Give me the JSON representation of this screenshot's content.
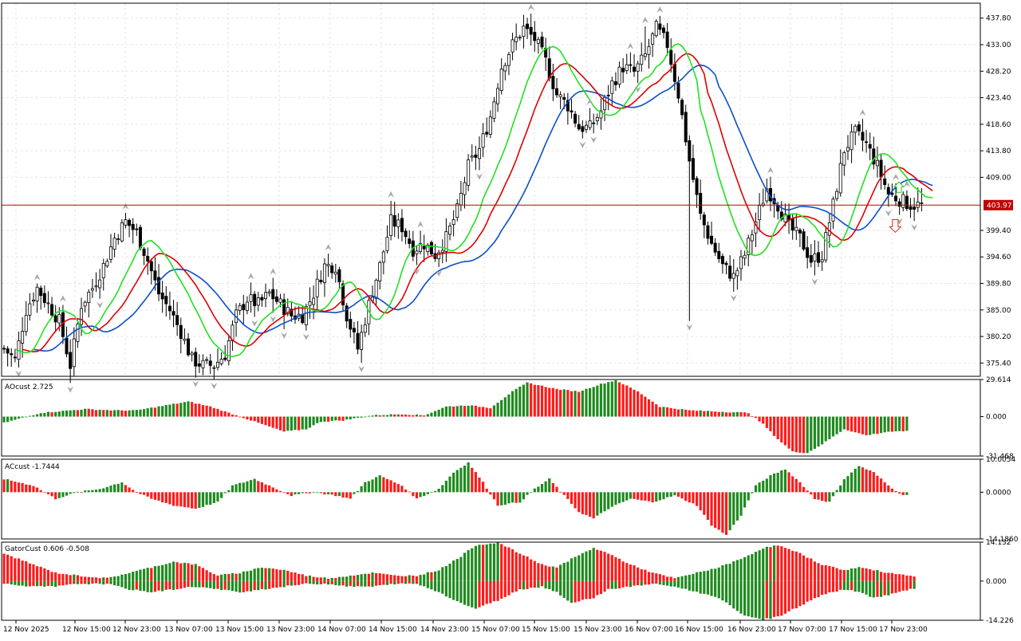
{
  "colors": {
    "background": "#ffffff",
    "grid": "#e6e6e6",
    "frame": "#000000",
    "bull": "#ffffff",
    "bear": "#000000",
    "jaw": "#0a4fc8",
    "teeth": "#e00000",
    "lips": "#22e022",
    "up": "#1f8a1f",
    "down": "#ff1a1a",
    "price_line": "#c00000",
    "price_tag": "#c00000",
    "fractal": "#a8a8a8"
  },
  "price_panel": {
    "ticks": [
      "437.80",
      "433.00",
      "428.20",
      "423.40",
      "418.60",
      "413.80",
      "409.00",
      "399.40",
      "394.60",
      "389.80",
      "385.00",
      "380.20",
      "375.40"
    ],
    "current_price": "403.97"
  },
  "ao_panel": {
    "label": "AOcust 2.725",
    "ticks": [
      "29.614",
      "0.000",
      "-31.468"
    ]
  },
  "ac_panel": {
    "label": "ACcust -1.7444",
    "ticks": [
      "10.0054",
      "0.0000",
      "-14.1860"
    ]
  },
  "gator_panel": {
    "label": "GatorCust 0.606 -0.508",
    "ticks": [
      "14.132",
      "0.000",
      "-14.226"
    ]
  },
  "time_axis": {
    "labels": [
      "12 Nov 2025",
      "12 Nov 15:00",
      "12 Nov 23:00",
      "13 Nov 07:00",
      "13 Nov 15:00",
      "13 Nov 23:00",
      "14 Nov 07:00",
      "14 Nov 15:00",
      "14 Nov 23:00",
      "15 Nov 07:00",
      "15 Nov 15:00",
      "15 Nov 23:00",
      "16 Nov 07:00",
      "16 Nov 15:00",
      "16 Nov 23:00",
      "17 Nov 07:00",
      "17 Nov 15:00",
      "17 Nov 23:00"
    ]
  },
  "chart_data": [
    {
      "type": "candlestick",
      "title": "",
      "timeframe_hours": 1,
      "price_ylim": [
        373.0,
        440.5
      ],
      "x_labels": [
        "12 Nov 2025",
        "12 Nov 15:00",
        "12 Nov 23:00",
        "13 Nov 07:00",
        "13 Nov 15:00",
        "13 Nov 23:00",
        "14 Nov 07:00",
        "14 Nov 15:00",
        "14 Nov 23:00",
        "15 Nov 07:00",
        "15 Nov 15:00",
        "15 Nov 23:00",
        "16 Nov 07:00",
        "16 Nov 15:00",
        "16 Nov 23:00",
        "17 Nov 07:00",
        "17 Nov 15:00",
        "17 Nov 23:00"
      ],
      "close_path": [
        [
          0,
          378
        ],
        [
          3,
          376
        ],
        [
          6,
          385
        ],
        [
          9,
          389
        ],
        [
          12,
          386
        ],
        [
          15,
          383
        ],
        [
          18,
          375
        ],
        [
          21,
          386
        ],
        [
          24,
          389
        ],
        [
          27,
          393
        ],
        [
          30,
          398
        ],
        [
          33,
          401
        ],
        [
          36,
          399
        ],
        [
          39,
          394
        ],
        [
          42,
          388
        ],
        [
          45,
          385
        ],
        [
          48,
          381
        ],
        [
          51,
          376
        ],
        [
          54,
          375
        ],
        [
          57,
          375
        ],
        [
          60,
          377
        ],
        [
          63,
          384
        ],
        [
          66,
          387
        ],
        [
          69,
          386
        ],
        [
          72,
          388
        ],
        [
          75,
          386
        ],
        [
          78,
          384
        ],
        [
          81,
          384
        ],
        [
          84,
          388
        ],
        [
          87,
          393
        ],
        [
          90,
          393
        ],
        [
          93,
          384
        ],
        [
          96,
          378
        ],
        [
          99,
          386
        ],
        [
          102,
          393
        ],
        [
          105,
          401
        ],
        [
          108,
          400
        ],
        [
          111,
          396
        ],
        [
          114,
          397
        ],
        [
          117,
          395
        ],
        [
          120,
          398
        ],
        [
          123,
          403
        ],
        [
          126,
          411
        ],
        [
          129,
          414
        ],
        [
          132,
          420
        ],
        [
          135,
          429
        ],
        [
          138,
          433
        ],
        [
          141,
          436
        ],
        [
          144,
          434
        ],
        [
          147,
          430
        ],
        [
          150,
          424
        ],
        [
          153,
          422
        ],
        [
          156,
          418
        ],
        [
          159,
          418
        ],
        [
          162,
          421
        ],
        [
          165,
          426
        ],
        [
          168,
          429
        ],
        [
          171,
          428
        ],
        [
          174,
          431
        ],
        [
          177,
          436
        ],
        [
          180,
          433
        ],
        [
          183,
          424
        ],
        [
          186,
          412
        ],
        [
          189,
          402
        ],
        [
          192,
          397
        ],
        [
          195,
          393
        ],
        [
          198,
          391
        ],
        [
          201,
          395
        ],
        [
          204,
          401
        ],
        [
          207,
          407
        ],
        [
          210,
          404
        ],
        [
          213,
          400
        ],
        [
          216,
          398
        ],
        [
          219,
          394
        ],
        [
          222,
          395
        ],
        [
          225,
          404
        ],
        [
          228,
          414
        ],
        [
          231,
          417
        ],
        [
          234,
          415
        ],
        [
          237,
          411
        ],
        [
          240,
          406
        ],
        [
          243,
          405
        ],
        [
          246,
          404
        ]
      ],
      "current_price": 403.97,
      "indicators": [
        "Alligator jaw (blue)",
        "Alligator teeth (red)",
        "Alligator lips (green)",
        "Fractals"
      ],
      "signals": [
        {
          "type": "buy",
          "bar": 242,
          "price": 407.0
        },
        {
          "type": "sell",
          "bar": 241,
          "price": 400.5
        }
      ]
    },
    {
      "type": "histogram",
      "series_name": "AOcust",
      "last_value": 2.725,
      "ylim": [
        -31.468,
        29.614
      ],
      "path": [
        [
          0,
          -5
        ],
        [
          10,
          3
        ],
        [
          22,
          6
        ],
        [
          30,
          5
        ],
        [
          36,
          5
        ],
        [
          44,
          9
        ],
        [
          50,
          12
        ],
        [
          56,
          8
        ],
        [
          62,
          2
        ],
        [
          70,
          -6
        ],
        [
          76,
          -12
        ],
        [
          82,
          -10
        ],
        [
          86,
          -4
        ],
        [
          92,
          -3
        ],
        [
          100,
          1
        ],
        [
          108,
          2
        ],
        [
          114,
          1
        ],
        [
          120,
          8
        ],
        [
          126,
          9
        ],
        [
          132,
          7
        ],
        [
          138,
          20
        ],
        [
          142,
          27
        ],
        [
          150,
          22
        ],
        [
          156,
          20
        ],
        [
          162,
          26
        ],
        [
          166,
          29
        ],
        [
          172,
          20
        ],
        [
          178,
          8
        ],
        [
          186,
          5
        ],
        [
          194,
          4
        ],
        [
          202,
          3
        ],
        [
          206,
          -6
        ],
        [
          210,
          -18
        ],
        [
          214,
          -28
        ],
        [
          218,
          -29
        ],
        [
          222,
          -22
        ],
        [
          228,
          -10
        ],
        [
          234,
          -15
        ],
        [
          240,
          -12
        ],
        [
          244,
          -12
        ],
        [
          248,
          -9
        ],
        [
          252,
          -6
        ],
        [
          256,
          -4
        ],
        [
          260,
          -3
        ],
        [
          264,
          -2
        ],
        [
          268,
          0
        ],
        [
          272,
          2
        ],
        [
          276,
          3
        ],
        [
          280,
          4
        ],
        [
          286,
          5
        ],
        [
          290,
          3
        ]
      ]
    },
    {
      "type": "histogram",
      "series_name": "ACcust",
      "last_value": -1.7444,
      "ylim": [
        -14.186,
        10.0054
      ],
      "path": [
        [
          0,
          4
        ],
        [
          8,
          2
        ],
        [
          14,
          -2
        ],
        [
          20,
          0
        ],
        [
          26,
          1
        ],
        [
          32,
          3
        ],
        [
          36,
          0
        ],
        [
          40,
          -2
        ],
        [
          46,
          -4
        ],
        [
          52,
          -5
        ],
        [
          58,
          -3
        ],
        [
          62,
          2
        ],
        [
          68,
          4
        ],
        [
          72,
          2
        ],
        [
          78,
          -1
        ],
        [
          84,
          0
        ],
        [
          90,
          -1
        ],
        [
          94,
          -2
        ],
        [
          98,
          3
        ],
        [
          102,
          5
        ],
        [
          108,
          2
        ],
        [
          112,
          -2
        ],
        [
          118,
          1
        ],
        [
          122,
          6
        ],
        [
          126,
          9
        ],
        [
          130,
          3
        ],
        [
          134,
          -4
        ],
        [
          140,
          -3
        ],
        [
          144,
          1
        ],
        [
          148,
          4
        ],
        [
          152,
          -1
        ],
        [
          156,
          -6
        ],
        [
          160,
          -8
        ],
        [
          164,
          -5
        ],
        [
          170,
          -2
        ],
        [
          176,
          -3
        ],
        [
          182,
          -1
        ],
        [
          188,
          -4
        ],
        [
          192,
          -10
        ],
        [
          196,
          -13
        ],
        [
          200,
          -7
        ],
        [
          204,
          2
        ],
        [
          208,
          5
        ],
        [
          212,
          7
        ],
        [
          216,
          3
        ],
        [
          220,
          -2
        ],
        [
          224,
          -3
        ],
        [
          228,
          4
        ],
        [
          232,
          8
        ],
        [
          236,
          6
        ],
        [
          240,
          2
        ],
        [
          244,
          -1
        ],
        [
          250,
          1
        ],
        [
          258,
          -1
        ],
        [
          264,
          2
        ],
        [
          270,
          -2
        ]
      ]
    },
    {
      "type": "histogram",
      "series_name": "GatorCust",
      "last_values": [
        0.606,
        -0.508
      ],
      "ylim": [
        -14.226,
        14.132
      ],
      "upper_path": [
        [
          0,
          10
        ],
        [
          8,
          6
        ],
        [
          14,
          3
        ],
        [
          20,
          2
        ],
        [
          28,
          1
        ],
        [
          34,
          3
        ],
        [
          40,
          5
        ],
        [
          46,
          7
        ],
        [
          52,
          6
        ],
        [
          58,
          2
        ],
        [
          64,
          3
        ],
        [
          70,
          5
        ],
        [
          76,
          4
        ],
        [
          82,
          2
        ],
        [
          88,
          1
        ],
        [
          94,
          2
        ],
        [
          100,
          3
        ],
        [
          106,
          2
        ],
        [
          112,
          2
        ],
        [
          118,
          4
        ],
        [
          124,
          9
        ],
        [
          128,
          13
        ],
        [
          134,
          14
        ],
        [
          140,
          10
        ],
        [
          146,
          6
        ],
        [
          150,
          5
        ],
        [
          154,
          8
        ],
        [
          160,
          12
        ],
        [
          164,
          10
        ],
        [
          170,
          6
        ],
        [
          176,
          3
        ],
        [
          182,
          1
        ],
        [
          188,
          3
        ],
        [
          194,
          5
        ],
        [
          200,
          8
        ],
        [
          206,
          12
        ],
        [
          210,
          13
        ],
        [
          216,
          10
        ],
        [
          222,
          6
        ],
        [
          228,
          4
        ],
        [
          232,
          5
        ],
        [
          236,
          4
        ],
        [
          240,
          3
        ],
        [
          246,
          2
        ],
        [
          252,
          1
        ],
        [
          258,
          0.6
        ]
      ],
      "lower_path": [
        [
          0,
          -1
        ],
        [
          8,
          -2
        ],
        [
          14,
          -2
        ],
        [
          20,
          -1
        ],
        [
          28,
          -1
        ],
        [
          34,
          -3
        ],
        [
          40,
          -4
        ],
        [
          46,
          -3
        ],
        [
          52,
          -2
        ],
        [
          58,
          -3
        ],
        [
          64,
          -4
        ],
        [
          70,
          -3
        ],
        [
          76,
          -2
        ],
        [
          82,
          -1
        ],
        [
          88,
          -1
        ],
        [
          94,
          -2
        ],
        [
          100,
          -2
        ],
        [
          106,
          -1
        ],
        [
          112,
          -1
        ],
        [
          118,
          -4
        ],
        [
          124,
          -8
        ],
        [
          128,
          -10
        ],
        [
          134,
          -7
        ],
        [
          140,
          -3
        ],
        [
          146,
          -2
        ],
        [
          150,
          -4
        ],
        [
          154,
          -8
        ],
        [
          160,
          -6
        ],
        [
          164,
          -3
        ],
        [
          170,
          -2
        ],
        [
          176,
          -1
        ],
        [
          182,
          -2
        ],
        [
          188,
          -4
        ],
        [
          194,
          -6
        ],
        [
          200,
          -12
        ],
        [
          206,
          -14
        ],
        [
          210,
          -13
        ],
        [
          216,
          -9
        ],
        [
          222,
          -5
        ],
        [
          228,
          -3
        ],
        [
          232,
          -4
        ],
        [
          236,
          -6
        ],
        [
          240,
          -5
        ],
        [
          246,
          -3
        ],
        [
          252,
          -2
        ],
        [
          258,
          -0.5
        ]
      ]
    }
  ]
}
